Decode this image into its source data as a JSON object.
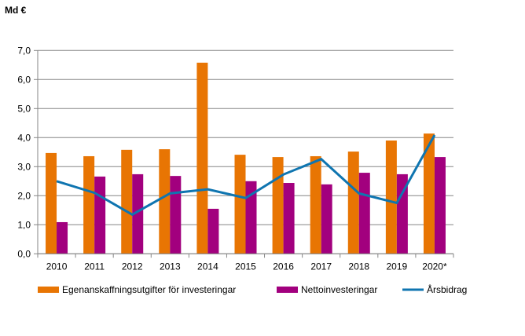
{
  "chart_data": {
    "type": "bar",
    "unit_label": "Md €",
    "categories": [
      "2010",
      "2011",
      "2012",
      "2013",
      "2014",
      "2015",
      "2016",
      "2017",
      "2018",
      "2019",
      "2020*"
    ],
    "series": [
      {
        "name": "Egenanskaffningsutgifter för investeringar",
        "kind": "bar",
        "color": "#e87503",
        "values": [
          3.47,
          3.36,
          3.58,
          3.6,
          6.58,
          3.41,
          3.33,
          3.36,
          3.52,
          3.9,
          4.14
        ]
      },
      {
        "name": "Nettoinvesteringar",
        "kind": "bar",
        "color": "#a2007e",
        "values": [
          1.09,
          2.66,
          2.74,
          2.68,
          1.55,
          2.5,
          2.44,
          2.39,
          2.79,
          2.74,
          3.33
        ]
      },
      {
        "name": "Årsbidrag",
        "kind": "line",
        "color": "#0f75b0",
        "values": [
          2.5,
          2.1,
          1.35,
          2.08,
          2.22,
          1.92,
          2.73,
          3.26,
          2.08,
          1.75,
          4.09
        ]
      }
    ],
    "ylim": [
      0,
      7
    ],
    "yticks": [
      "0,0",
      "1,0",
      "2,0",
      "3,0",
      "4,0",
      "5,0",
      "6,0",
      "7,0"
    ],
    "grid": true,
    "legend_placement": "bottom"
  }
}
